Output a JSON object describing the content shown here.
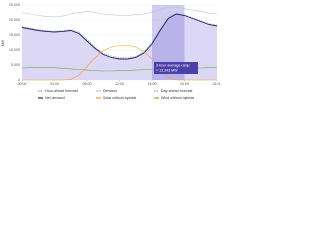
{
  "chart_data": {
    "type": "line",
    "x": [
      0,
      1,
      2,
      3,
      4,
      5,
      6,
      7,
      8,
      9,
      10,
      11,
      12,
      13,
      14,
      15,
      16,
      17,
      18,
      19,
      20,
      21,
      22,
      23,
      24
    ],
    "xlim": [
      0,
      24
    ],
    "xticks": [
      {
        "value": 0,
        "label": "00:00"
      },
      {
        "value": 4,
        "label": "04:00"
      },
      {
        "value": 8,
        "label": "08:00"
      },
      {
        "value": 12,
        "label": "12:00"
      },
      {
        "value": 16,
        "label": "16:00"
      },
      {
        "value": 20,
        "label": "20:00"
      },
      {
        "value": 24,
        "label": "24:00"
      }
    ],
    "ylim": [
      0,
      25000
    ],
    "yticks": [
      0,
      {
        "value": 5000,
        "label": "5,000"
      },
      {
        "value": 10000,
        "label": "10,000"
      },
      {
        "value": 15000,
        "label": "15,000"
      },
      {
        "value": 20000,
        "label": "20,000"
      },
      {
        "value": 25000,
        "label": "25,000"
      }
    ],
    "y_label": "MW",
    "grid": true,
    "fill_series": 3,
    "fill_color": "#cdc6f0",
    "highlight": {
      "x": [
        16,
        20
      ],
      "color": "#7b6fd6",
      "annotation": [
        "3-hour average ramp",
        "= 13,343 MW"
      ]
    },
    "series": [
      {
        "name": "Hour-ahead forecast",
        "color": "#8a96ab",
        "dash": true,
        "values": [
          17600,
          17100,
          16600,
          16300,
          16100,
          16300,
          16600,
          15700,
          13200,
          10700,
          8700,
          7600,
          7200,
          7100,
          7700,
          9200,
          12300,
          16800,
          20700,
          22100,
          21600,
          20600,
          19600,
          18600,
          18100
        ]
      },
      {
        "name": "Demand",
        "color": "#b7c2d4",
        "dash": false,
        "values": [
          22500,
          22000,
          21500,
          21200,
          21000,
          21300,
          22000,
          22500,
          22800,
          22500,
          22000,
          21800,
          21500,
          21500,
          21800,
          22000,
          22500,
          23500,
          24200,
          24300,
          23800,
          23300,
          22800,
          22300,
          22000
        ]
      },
      {
        "name": "Day-ahead forecast",
        "color": "#a7a9c7",
        "dash": true,
        "values": [
          17800,
          17300,
          16800,
          16500,
          16300,
          16500,
          16800,
          16000,
          13600,
          11000,
          9000,
          8000,
          7500,
          7400,
          7900,
          9500,
          12600,
          17000,
          20900,
          22300,
          21800,
          20800,
          19800,
          18800,
          18300
        ]
      },
      {
        "name": "Net demand",
        "color": "#1f2a5c",
        "dash": false,
        "values": [
          17500,
          17000,
          16500,
          16200,
          16000,
          16200,
          16500,
          15500,
          13000,
          10500,
          8500,
          7500,
          7000,
          7000,
          7500,
          9000,
          12000,
          16500,
          20500,
          22000,
          21500,
          20500,
          19500,
          18500,
          18000
        ]
      },
      {
        "name": "Solar without hybrids",
        "color": "#f39c34",
        "dash": false,
        "values": [
          0,
          0,
          0,
          0,
          0,
          0,
          200,
          1500,
          4500,
          7500,
          9800,
          11000,
          11500,
          11500,
          11000,
          9500,
          7000,
          3500,
          800,
          0,
          0,
          0,
          0,
          0,
          0
        ]
      },
      {
        "name": "Wind without hybrids",
        "color": "#6ab04c",
        "dash": false,
        "values": [
          4000,
          4100,
          4200,
          4200,
          4100,
          3900,
          3700,
          3500,
          3300,
          3100,
          3000,
          3000,
          3100,
          3200,
          3300,
          3400,
          3500,
          3600,
          3700,
          3800,
          3900,
          4000,
          4000,
          4100,
          4100
        ]
      }
    ]
  }
}
